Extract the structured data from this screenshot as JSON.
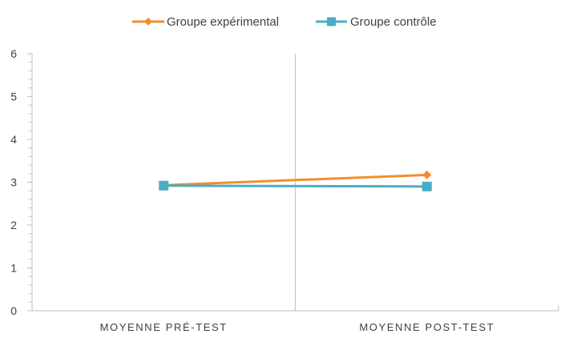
{
  "chart_data": {
    "type": "line",
    "categories": [
      "MOYENNE PRÉ-TEST",
      "MOYENNE POST-TEST"
    ],
    "series": [
      {
        "name": "Groupe expérimental",
        "values": [
          2.93,
          3.17
        ],
        "color": "#F28E2B",
        "marker": "diamond"
      },
      {
        "name": "Groupe contrôle",
        "values": [
          2.92,
          2.9
        ],
        "color": "#4BACC6",
        "marker": "square"
      }
    ],
    "yticks": [
      "0",
      "1",
      "2",
      "3",
      "4",
      "5",
      "6"
    ],
    "ylim": [
      0,
      6
    ],
    "legend_position": "top-center",
    "grid": false,
    "category_separator": true,
    "axis_color": "#BFBFBF"
  }
}
